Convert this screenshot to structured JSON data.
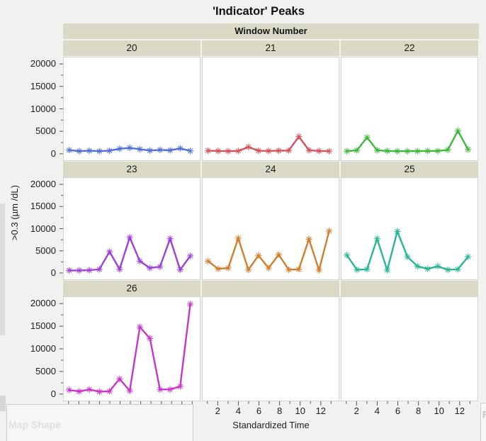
{
  "title": "'Indicator' Peaks",
  "facet": {
    "label": "Window Number"
  },
  "axes": {
    "x_label": "Standardized Time",
    "y_label": ">0.3 (µm /dL)"
  },
  "drop_zones": {
    "map_shape": "Map Shape",
    "freq_partial": "F"
  },
  "colors": {
    "page_bg": "#f1f1ef",
    "header_band": "#dbdac7",
    "panel_border": "#d3d3d1",
    "tick": "#555555"
  },
  "chart_data": {
    "type": "line",
    "title": "'Indicator' Peaks",
    "facet_label": "Window Number",
    "xlabel": "Standardized Time",
    "ylabel": ">0.3 (µm /dL)",
    "x": [
      1,
      2,
      3,
      4,
      5,
      6,
      7,
      8,
      9,
      10,
      11,
      12,
      13
    ],
    "x_major_ticks": [
      2,
      4,
      6,
      8,
      10,
      12
    ],
    "ylim": [
      0,
      20000
    ],
    "y_major_step": 5000,
    "y_minor_step": 2500,
    "grid": false,
    "legend": "none",
    "marker": "asterisk",
    "panels": [
      {
        "window": "20",
        "color": "#4f6fd6",
        "values": [
          400,
          150,
          250,
          150,
          250,
          700,
          900,
          600,
          300,
          450,
          350,
          800,
          200
        ]
      },
      {
        "window": "21",
        "color": "#d4515b",
        "values": [
          250,
          200,
          150,
          200,
          1100,
          250,
          200,
          250,
          300,
          3500,
          350,
          200,
          150
        ]
      },
      {
        "window": "22",
        "color": "#3eb73e",
        "values": [
          150,
          350,
          3300,
          350,
          200,
          150,
          150,
          150,
          200,
          200,
          450,
          4800,
          550
        ]
      },
      {
        "window": "23",
        "color": "#9c41d6",
        "values": [
          150,
          150,
          200,
          400,
          4500,
          400,
          7800,
          2300,
          700,
          1000,
          7500,
          300,
          3500
        ]
      },
      {
        "window": "24",
        "color": "#cf7f2e",
        "values": [
          2300,
          500,
          700,
          7600,
          300,
          3600,
          700,
          3800,
          300,
          400,
          7400,
          200,
          9300
        ]
      },
      {
        "window": "25",
        "color": "#29b694",
        "values": [
          3700,
          300,
          400,
          7500,
          200,
          9200,
          3300,
          1100,
          500,
          1100,
          300,
          400,
          3300
        ]
      },
      {
        "window": "26",
        "color": "#c935c9",
        "values": [
          500,
          150,
          600,
          100,
          200,
          3000,
          300,
          14800,
          12200,
          600,
          600,
          1300,
          20000
        ]
      }
    ]
  }
}
